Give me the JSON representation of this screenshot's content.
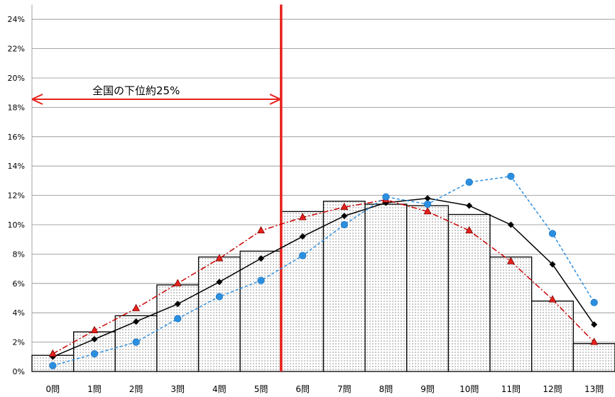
{
  "chart_data": {
    "type": "bar",
    "categories": [
      "0問",
      "1問",
      "2問",
      "3問",
      "4問",
      "5問",
      "6問",
      "7問",
      "8問",
      "9問",
      "10問",
      "11問",
      "12問",
      "13問"
    ],
    "y_ticks": [
      "0%",
      "2%",
      "4%",
      "6%",
      "8%",
      "10%",
      "12%",
      "14%",
      "16%",
      "18%",
      "20%",
      "22%",
      "24%"
    ],
    "ylim": [
      0,
      25
    ],
    "grid": true,
    "bar_values": [
      1.1,
      2.7,
      3.8,
      5.9,
      7.8,
      8.2,
      10.9,
      11.6,
      11.4,
      11.3,
      10.7,
      7.8,
      4.8,
      1.9
    ],
    "series": [
      {
        "values": [
          1.0,
          2.2,
          3.4,
          4.6,
          6.1,
          7.7,
          9.2,
          10.6,
          11.5,
          11.8,
          11.3,
          10.0,
          7.3,
          3.2
        ],
        "color": "#000000",
        "marker": "diamond",
        "line": "solid"
      },
      {
        "values": [
          1.2,
          2.8,
          4.3,
          6.0,
          7.7,
          9.6,
          10.5,
          11.2,
          11.7,
          10.9,
          9.6,
          7.5,
          4.9,
          2.0
        ],
        "color": "#cc0000",
        "marker": "triangle",
        "line": "dashdot"
      },
      {
        "values": [
          0.4,
          1.2,
          2.0,
          3.6,
          5.1,
          6.2,
          7.9,
          10.0,
          11.9,
          11.4,
          12.9,
          13.3,
          9.4,
          4.7
        ],
        "color": "#2b8fe0",
        "marker": "circle",
        "line": "dashed"
      }
    ],
    "annotation": {
      "text": "全国の下位約25%",
      "divider_after_category": 5
    }
  }
}
